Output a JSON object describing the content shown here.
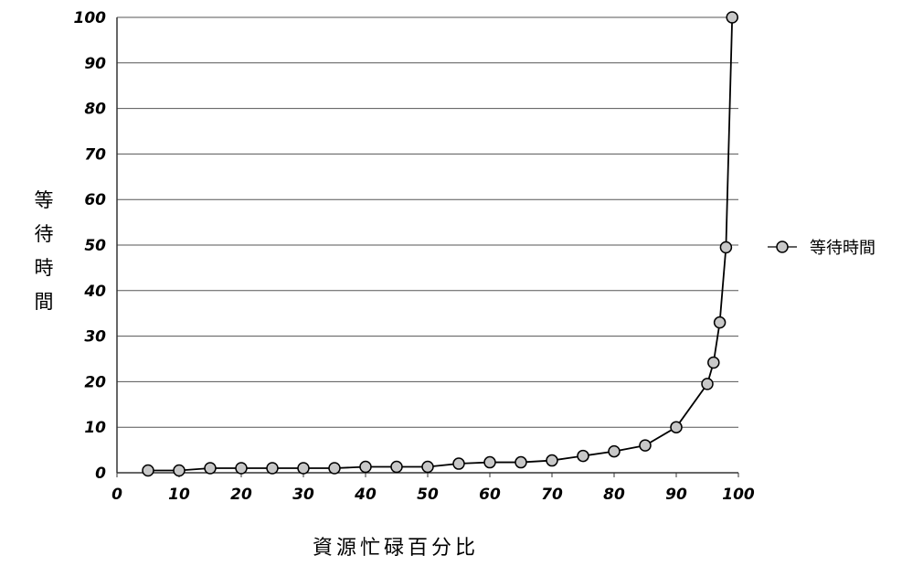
{
  "chart_data": {
    "type": "line",
    "xlabel": "資源忙碌百分比",
    "ylabel": "等待時間",
    "xlim": [
      0,
      100
    ],
    "ylim": [
      0,
      100
    ],
    "x_ticks": [
      0,
      10,
      20,
      30,
      40,
      50,
      60,
      70,
      80,
      90,
      100
    ],
    "y_ticks": [
      0,
      10,
      20,
      30,
      40,
      50,
      60,
      70,
      80,
      90,
      100
    ],
    "grid": "horizontal",
    "legend": "right",
    "series": [
      {
        "name": "等待時間",
        "color": "#000000",
        "marker_fill": "#c8c8c8",
        "x": [
          5,
          10,
          15,
          20,
          25,
          30,
          35,
          40,
          45,
          50,
          55,
          60,
          65,
          70,
          75,
          80,
          85,
          90,
          95,
          96,
          97,
          98,
          99
        ],
        "y": [
          0.5,
          0.5,
          1,
          1,
          1,
          1,
          1,
          1.3,
          1.3,
          1.3,
          2,
          2.3,
          2.3,
          2.7,
          3.7,
          4.7,
          6,
          10,
          19.5,
          24.2,
          33,
          49.5,
          100
        ]
      }
    ]
  }
}
